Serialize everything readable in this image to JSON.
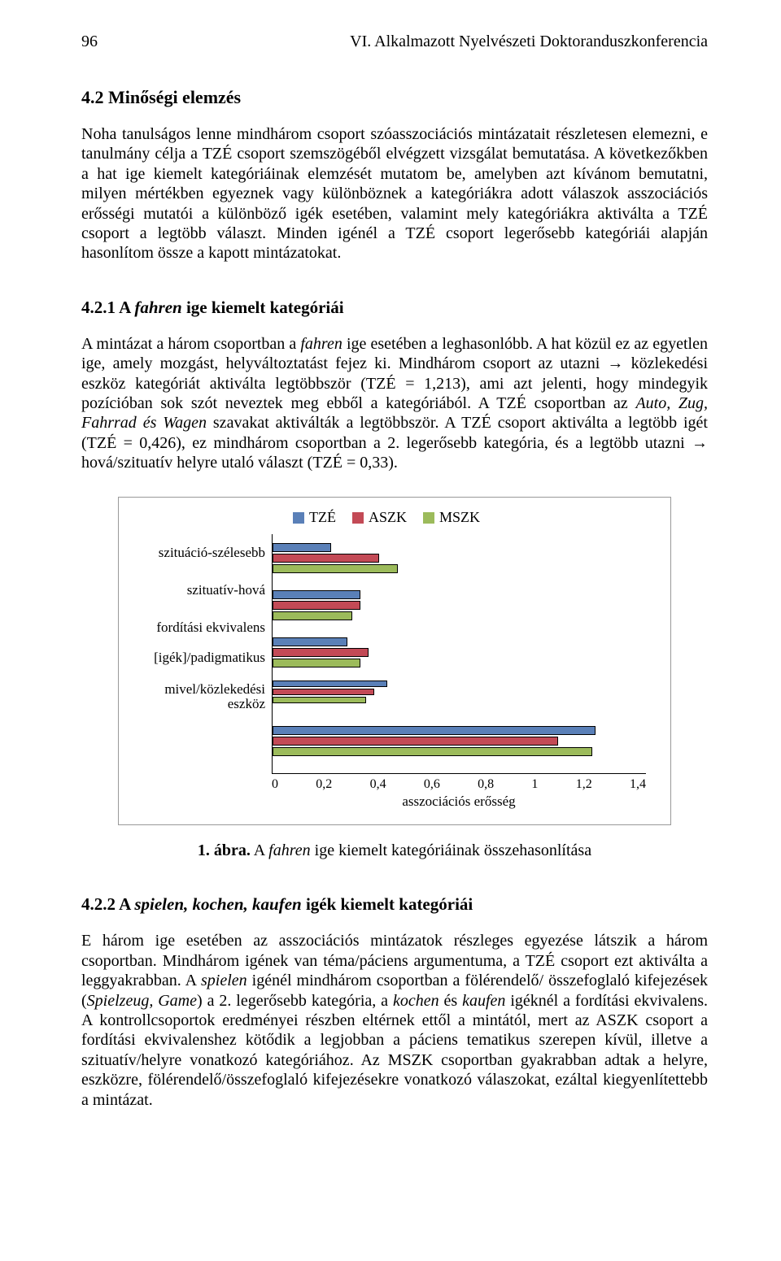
{
  "page_number": "96",
  "running_head": "VI. Alkalmazott Nyelvészeti Doktoranduszkonferencia",
  "section42_title": "4.2   Minőségi elemzés",
  "section42_body": "Noha tanulságos lenne mindhárom csoport szóasszociációs mintázatait részletesen elemezni, e tanulmány célja a TZÉ csoport szemszögéből elvégzett vizsgálat bemutatása. A következőkben a hat ige kiemelt kategóriáinak elemzését mutatom be, amelyben azt kívánom bemutatni, milyen mértékben egyeznek vagy különböznek a kategóriákra adott válaszok asszociációs erősségi mutatói a különböző igék esetében, valamint mely kategóriákra aktiválta a TZÉ csoport a legtöbb választ. Minden igénél a TZÉ csoport legerősebb kategóriái alapján hasonlítom össze a kapott mintázatokat.",
  "section421_title_plain": "4.2.1   A ",
  "section421_title_italic": "fahren",
  "section421_title_tail": " ige kiemelt kategóriái",
  "section421_body_a": "A mintázat a három csoportban a ",
  "section421_body_b": "fahren",
  "section421_body_c": " ige esetében a leghasonlóbb. A hat közül ez az egyetlen ige, amely mozgást, helyváltoztatást fejez ki. Mindhárom csoport az utazni → közlekedési eszköz kategóriát aktiválta legtöbbször (TZÉ = 1,213), ami azt jelenti, hogy mindegyik pozícióban sok szót neveztek meg ebből a kategóriából. A TZÉ csoportban az ",
  "section421_body_d": "Auto, Zug, Fahrrad és Wagen",
  "section421_body_e": " szavakat aktiválták a legtöbbször. A TZÉ csoport aktiválta a legtöbb igét (TZÉ = 0,426), ez mindhárom csoportban a 2. legerősebb kategória, és a legtöbb utazni → hová/szituatív helyre utaló választ (TZÉ = 0,33).",
  "chart": {
    "type": "horizontal_grouped_bar",
    "x_label": "asszociációs erősség",
    "x_ticks": [
      "0",
      "0,2",
      "0,4",
      "0,6",
      "0,8",
      "1",
      "1,2",
      "1,4"
    ],
    "x_max": 1.4,
    "categories": [
      "szituáció-szélesebb",
      "szituatív-hová",
      "fordítási ekvivalens",
      "[igék]/padigmatikus",
      "mivel/közlekedési eszköz"
    ],
    "cat_heights": [
      46,
      46,
      46,
      28,
      68
    ],
    "series": [
      {
        "name": "TZÉ",
        "color": "#5a80b8",
        "values": [
          0.22,
          0.33,
          0.28,
          0.43,
          1.21
        ]
      },
      {
        "name": "ASZK",
        "color": "#c34a56",
        "values": [
          0.4,
          0.33,
          0.36,
          0.38,
          1.07
        ]
      },
      {
        "name": "MSZK",
        "color": "#9cbb5b",
        "values": [
          0.47,
          0.3,
          0.33,
          0.35,
          1.2
        ]
      }
    ],
    "border_color": "#999999",
    "axis_color": "#000000",
    "background": "#ffffff"
  },
  "figure_caption_bold": "1. ábra.",
  "figure_caption_plain": " A ",
  "figure_caption_italic": "fahren",
  "figure_caption_tail": " ige kiemelt kategóriáinak összehasonlítása",
  "section422_title_plain": "4.2.2   A ",
  "section422_title_italic": "spielen, kochen, kaufen",
  "section422_title_tail": " igék kiemelt kategóriái",
  "section422_body_a": "E három ige esetében az asszociációs mintázatok részleges egyezése látszik a három csoportban. Mindhárom igének van téma/páciens argumentuma, a TZÉ csoport ezt aktiválta a leggyakrabban. A ",
  "section422_body_b": "spielen",
  "section422_body_c": " igénél mindhárom csoportban a fölérendelő/ összefoglaló kifejezések (",
  "section422_body_d": "Spielzeug, Game",
  "section422_body_e": ") a 2. legerősebb kategória, a ",
  "section422_body_f": "kochen",
  "section422_body_g": " és ",
  "section422_body_h": "kaufen",
  "section422_body_i": " igéknél a fordítási ekvivalens. A kontrollcsoportok eredményei részben eltérnek ettől a mintától, mert az ASZK csoport a fordítási ekvivalenshez kötődik a legjobban a páciens tematikus szerepen kívül, illetve a szituatív/helyre vonatkozó kategóriához. Az MSZK csoportban gyakrabban adtak a helyre, eszközre, fölérendelő/összefoglaló kifejezésekre vonatkozó válaszokat, ezáltal kiegyenlítettebb a mintázat."
}
